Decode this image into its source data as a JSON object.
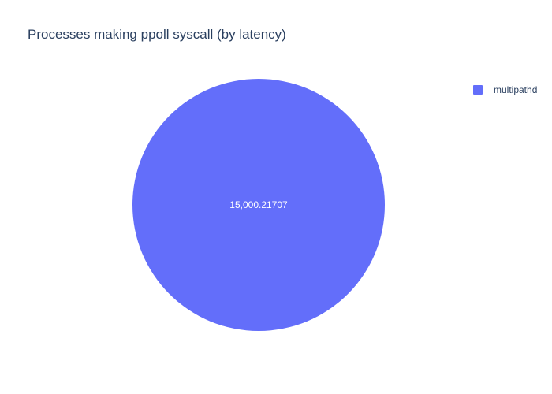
{
  "chart_data": {
    "type": "pie",
    "title": "Processes making ppoll syscall (by latency)",
    "labels": [
      "multipathd"
    ],
    "values": [
      15000.21707
    ],
    "value_labels": [
      "15,000.21707"
    ],
    "colors": [
      "#636efa"
    ],
    "legend_placement": "top-right",
    "text_color": "#2a3f5f",
    "label_color": "#ffffff"
  }
}
